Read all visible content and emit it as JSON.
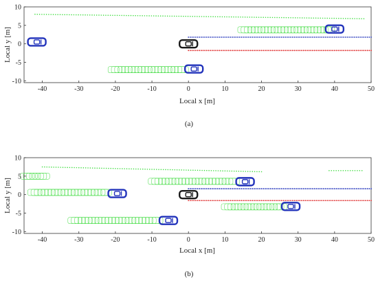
{
  "colors": {
    "ego": "#1a1a1a",
    "vehicle": "#2233bb",
    "track": "#44dd44",
    "lane_left": "#2233bb",
    "lane_right": "#dd2222",
    "axis": "#333333"
  },
  "chart_data": [
    {
      "type": "scatter",
      "panel_label": "(a)",
      "xlabel": "Local x [m]",
      "ylabel": "Local y [m]",
      "xlim": [
        -45,
        50
      ],
      "ylim": [
        -10.5,
        10
      ],
      "xticks": [
        -40,
        -30,
        -20,
        -10,
        0,
        10,
        20,
        30,
        40,
        50
      ],
      "yticks": [
        10,
        5,
        0,
        -5,
        -10
      ],
      "grid": false,
      "ego_vehicle": {
        "x": 0,
        "y": 0
      },
      "vehicles": [
        {
          "x": -41.5,
          "y": 0.5
        },
        {
          "x": 1.5,
          "y": -6.8
        },
        {
          "x": 40,
          "y": 4.0
        }
      ],
      "tracks": [
        {
          "x_start": -20.5,
          "x_end": -1.5,
          "y": -7.0
        },
        {
          "x_start": 15.0,
          "x_end": 38.5,
          "y": 3.8
        }
      ],
      "point_lines": [
        {
          "x_start": -42,
          "x_end": 48,
          "y_start": 8.0,
          "y_end": 6.8
        }
      ],
      "lane_lines": [
        {
          "color": "lane_left",
          "x_start": 0,
          "x_end": 50,
          "y": 1.8
        },
        {
          "color": "lane_right",
          "x_start": 0,
          "x_end": 50,
          "y": -1.8
        }
      ]
    },
    {
      "type": "scatter",
      "panel_label": "(b)",
      "xlabel": "Local x [m]",
      "ylabel": "Local y [m]",
      "xlim": [
        -45,
        50
      ],
      "ylim": [
        -10.5,
        10
      ],
      "xticks": [
        -40,
        -30,
        -20,
        -10,
        0,
        10,
        20,
        30,
        40,
        50
      ],
      "yticks": [
        10,
        5,
        0,
        -5,
        -10
      ],
      "grid": false,
      "ego_vehicle": {
        "x": 0,
        "y": 0
      },
      "vehicles": [
        {
          "x": -19.5,
          "y": 0.3
        },
        {
          "x": 15.5,
          "y": 3.5
        },
        {
          "x": 28,
          "y": -3.2
        },
        {
          "x": -5.5,
          "y": -7.0
        }
      ],
      "tracks": [
        {
          "x_start": -44.5,
          "x_end": -39.5,
          "y": 5.0
        },
        {
          "x_start": -42.5,
          "x_end": -22.5,
          "y": 0.6
        },
        {
          "x_start": -9.5,
          "x_end": 12.5,
          "y": 3.6
        },
        {
          "x_start": 10.5,
          "x_end": 25.5,
          "y": -3.3
        },
        {
          "x_start": -31.5,
          "x_end": -8.5,
          "y": -7.0
        }
      ],
      "point_lines": [
        {
          "x_start": -40,
          "x_end": 20,
          "y_start": 7.5,
          "y_end": 6.2
        },
        {
          "x_start": 38.5,
          "x_end": 47.5,
          "y_start": 6.5,
          "y_end": 6.5
        }
      ],
      "lane_lines": [
        {
          "color": "lane_left",
          "x_start": 0,
          "x_end": 50,
          "y": 1.6
        },
        {
          "color": "lane_right",
          "x_start": 0,
          "x_end": 50,
          "y": -1.6
        }
      ]
    }
  ]
}
